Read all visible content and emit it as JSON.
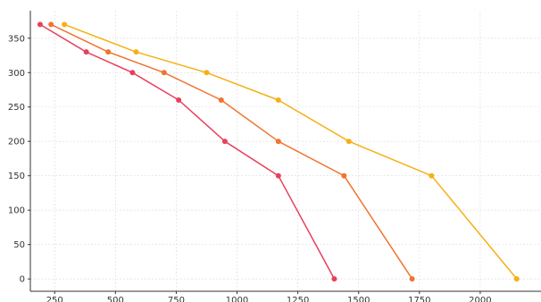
{
  "chart_data": {
    "type": "line",
    "title": "",
    "xlabel": "",
    "ylabel": "",
    "xlim": [
      150,
      2250
    ],
    "ylim": [
      -18,
      390
    ],
    "x_ticks": [
      250,
      500,
      750,
      1000,
      1250,
      1500,
      1750,
      2000
    ],
    "y_ticks": [
      0,
      50,
      100,
      150,
      200,
      250,
      300,
      350
    ],
    "grid": true,
    "legend": "none",
    "series": [
      {
        "color": "#e8405c",
        "points": [
          [
            190,
            370
          ],
          [
            380,
            330
          ],
          [
            570,
            300
          ],
          [
            760,
            260
          ],
          [
            950,
            200
          ],
          [
            1170,
            150
          ],
          [
            1400,
            0
          ]
        ]
      },
      {
        "color": "#ef7430",
        "points": [
          [
            235,
            370
          ],
          [
            470,
            330
          ],
          [
            700,
            300
          ],
          [
            935,
            260
          ],
          [
            1170,
            200
          ],
          [
            1440,
            150
          ],
          [
            1720,
            0
          ]
        ]
      },
      {
        "color": "#f5b014",
        "points": [
          [
            290,
            370
          ],
          [
            585,
            330
          ],
          [
            875,
            300
          ],
          [
            1170,
            260
          ],
          [
            1460,
            200
          ],
          [
            1800,
            150
          ],
          [
            2150,
            0
          ]
        ]
      }
    ]
  }
}
